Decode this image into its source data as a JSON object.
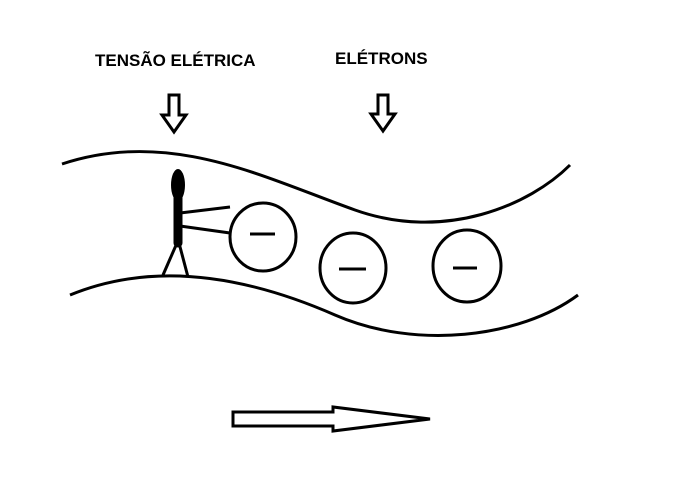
{
  "labels": {
    "voltage": "TENSÃO ELÉTRICA",
    "electrons": "ELÉTRONS"
  },
  "electron_sign": "−",
  "colors": {
    "stroke": "#000000",
    "background": "#ffffff"
  }
}
